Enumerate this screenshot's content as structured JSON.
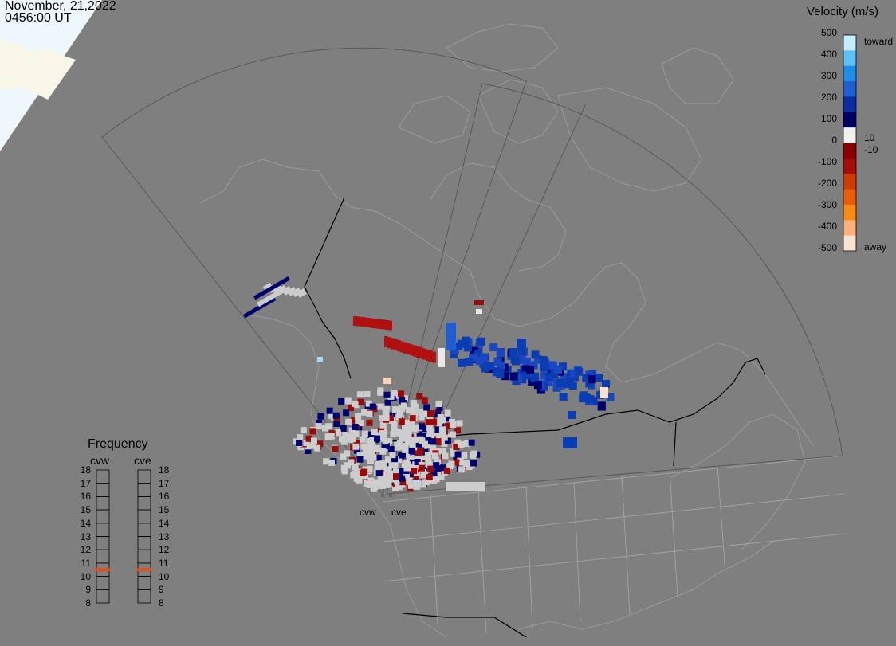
{
  "title": {
    "date": "November, 21,2022",
    "time": "0456:00 UT"
  },
  "colorbar": {
    "title": "Velocity (m/s)",
    "ticks": [
      "500",
      "400",
      "300",
      "200",
      "100",
      "0",
      "-100",
      "-200",
      "-300",
      "-400",
      "-500"
    ],
    "label_toward": "toward",
    "label_away": "away",
    "label_pos_threshold": "10",
    "label_neg_threshold": "-10",
    "colors": [
      "#fbe3d0",
      "#fdb07a",
      "#f98a14",
      "#ed5c0c",
      "#cf3b06",
      "#a50d08",
      "#8a0000",
      "#f0f0f0",
      "#000060",
      "#0a2da0",
      "#1f5dd0",
      "#1e8de8",
      "#5fc0f8",
      "#c6ecfd"
    ]
  },
  "frequency": {
    "title": "Frequency",
    "left_label": "cvw",
    "right_label": "cve",
    "levels": [
      "18",
      "17",
      "16",
      "15",
      "14",
      "13",
      "12",
      "11",
      "10",
      "9",
      "8"
    ],
    "cvw_value": 11,
    "cve_value": 11,
    "indicator_color": "#e0501e"
  },
  "radars": [
    "cvw",
    "cve"
  ],
  "colors": {
    "background": "#7f7f7f",
    "coastline": "#9a9a9a",
    "fov": "#555555",
    "groundscatter": "#cccccc"
  }
}
